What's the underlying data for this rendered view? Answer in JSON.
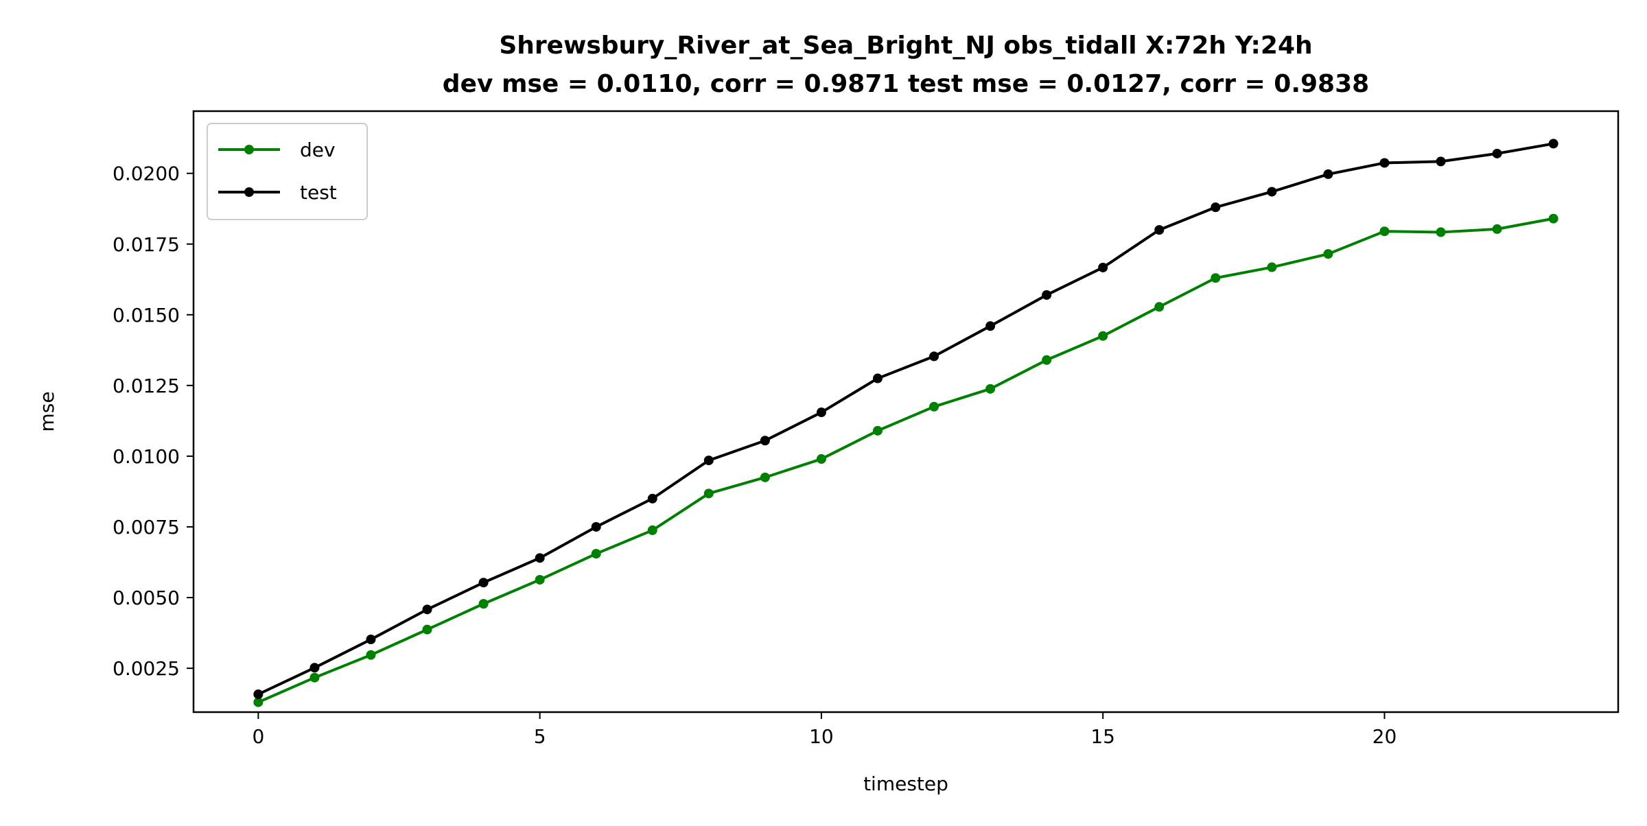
{
  "chart_data": {
    "type": "line",
    "title": "Shrewsbury_River_at_Sea_Bright_NJ   obs_tidall   X:72h   Y:24h",
    "subtitle": "dev mse = 0.0110, corr = 0.9871   test mse = 0.0127, corr = 0.9838",
    "xlabel": "timestep",
    "ylabel": "mse",
    "xlim": [
      -1.15,
      24.15
    ],
    "ylim": [
      0.00095,
      0.0222
    ],
    "xticks": [
      0,
      5,
      10,
      15,
      20
    ],
    "xtick_labels": [
      "0",
      "5",
      "10",
      "15",
      "20"
    ],
    "yticks": [
      0.0025,
      0.005,
      0.0075,
      0.01,
      0.0125,
      0.015,
      0.0175,
      0.02
    ],
    "ytick_labels": [
      "0.0025",
      "0.0050",
      "0.0075",
      "0.0100",
      "0.0125",
      "0.0150",
      "0.0175",
      "0.0200"
    ],
    "grid": false,
    "legend_position": "top-left",
    "x": [
      0,
      1,
      2,
      3,
      4,
      5,
      6,
      7,
      8,
      9,
      10,
      11,
      12,
      13,
      14,
      15,
      16,
      17,
      18,
      19,
      20,
      21,
      22,
      23
    ],
    "series": [
      {
        "name": "dev",
        "color": "#008000",
        "values": [
          0.0013,
          0.00217,
          0.00297,
          0.00387,
          0.00478,
          0.00563,
          0.00655,
          0.00738,
          0.00868,
          0.00925,
          0.0099,
          0.0109,
          0.01175,
          0.01238,
          0.0134,
          0.01425,
          0.01528,
          0.0163,
          0.01668,
          0.01715,
          0.01795,
          0.01792,
          0.01803,
          0.0184
        ]
      },
      {
        "name": "test",
        "color": "#000000",
        "values": [
          0.00158,
          0.00252,
          0.00352,
          0.00458,
          0.00553,
          0.0064,
          0.0075,
          0.0085,
          0.00985,
          0.01055,
          0.01155,
          0.01275,
          0.01353,
          0.0146,
          0.0157,
          0.01667,
          0.018,
          0.0188,
          0.01935,
          0.01997,
          0.02037,
          0.02042,
          0.0207,
          0.02105
        ]
      }
    ]
  }
}
